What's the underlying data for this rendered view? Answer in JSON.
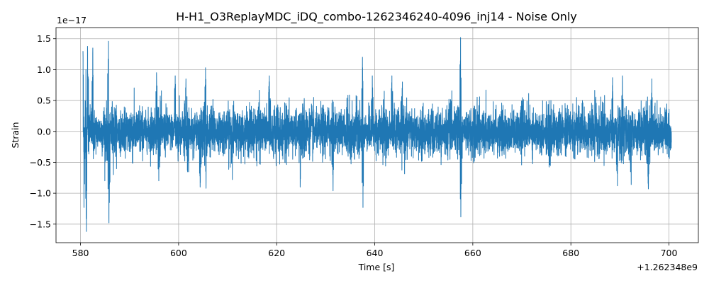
{
  "chart_data": {
    "type": "line",
    "title": "H-H1_O3ReplayMDC_iDQ_combo-1262346240-4096_inj14 - Noise Only",
    "xlabel": "Time [s]",
    "ylabel": "Strain",
    "x_offset_label": "+1.262348e9",
    "y_scale_label": "1e−17",
    "xlim": [
      575,
      706
    ],
    "ylim": [
      -1.8,
      1.68
    ],
    "x_ticks": [
      580,
      600,
      620,
      640,
      660,
      680,
      700
    ],
    "y_ticks": [
      -1.5,
      -1.0,
      -0.5,
      0.0,
      0.5,
      1.0,
      1.5
    ],
    "x_tick_labels": [
      "580",
      "600",
      "620",
      "640",
      "660",
      "680",
      "700"
    ],
    "y_tick_labels": [
      "−1.5",
      "−1.0",
      "−0.5",
      "0.0",
      "0.5",
      "1.0",
      "1.5"
    ],
    "grid": true,
    "series": [
      {
        "color": "#1f77b4",
        "x_start": 580.5,
        "x_end": 700.5,
        "typical_amplitude": 0.3,
        "envelope_peaks": [
          {
            "x": 580.5,
            "y": 1.3
          },
          {
            "x": 580.7,
            "y": -1.23
          },
          {
            "x": 581.1,
            "y": 1.0
          },
          {
            "x": 581.2,
            "y": -1.62
          },
          {
            "x": 581.4,
            "y": 1.5
          },
          {
            "x": 582.5,
            "y": 1.35
          },
          {
            "x": 585.7,
            "y": 1.46
          },
          {
            "x": 585.8,
            "y": -1.48
          },
          {
            "x": 595.5,
            "y": 0.95
          },
          {
            "x": 599.3,
            "y": 0.9
          },
          {
            "x": 601.5,
            "y": 0.85
          },
          {
            "x": 604.4,
            "y": -0.9
          },
          {
            "x": 605.5,
            "y": 1.03
          },
          {
            "x": 605.6,
            "y": -0.92
          },
          {
            "x": 618.5,
            "y": 0.9
          },
          {
            "x": 624.8,
            "y": -0.9
          },
          {
            "x": 631.5,
            "y": -0.96
          },
          {
            "x": 637.5,
            "y": 1.2
          },
          {
            "x": 637.6,
            "y": -1.23
          },
          {
            "x": 639.5,
            "y": 0.9
          },
          {
            "x": 643.5,
            "y": 0.9
          },
          {
            "x": 657.5,
            "y": 1.52
          },
          {
            "x": 657.6,
            "y": -1.5
          },
          {
            "x": 688.5,
            "y": 0.87
          },
          {
            "x": 689.5,
            "y": -0.88
          },
          {
            "x": 690.5,
            "y": 0.9
          },
          {
            "x": 692.3,
            "y": -0.86
          },
          {
            "x": 695.8,
            "y": -0.93
          },
          {
            "x": 696.5,
            "y": 0.85
          },
          {
            "x": 699.5,
            "y": 0.3
          },
          {
            "x": 700.3,
            "y": -0.3
          }
        ]
      }
    ]
  }
}
